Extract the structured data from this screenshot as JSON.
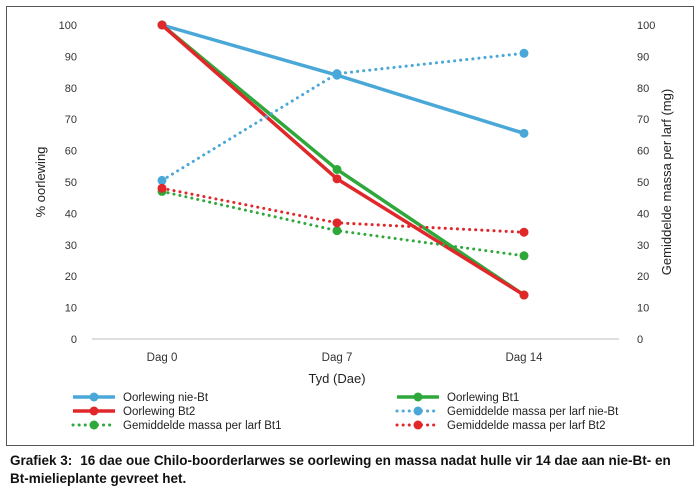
{
  "chart_data": {
    "type": "line",
    "categories": [
      "Dag 0",
      "Dag 7",
      "Dag 14"
    ],
    "xlabel": "Tyd (Dae)",
    "ylabel_left": "% oorlewing",
    "ylabel_right": "Gemiddelde massa per larf (mg)",
    "ylim_left": [
      0,
      100
    ],
    "ylim_right": [
      0,
      100
    ],
    "yticks": [
      0,
      10,
      20,
      30,
      40,
      50,
      60,
      70,
      80,
      90,
      100
    ],
    "grid": false,
    "legend_position": "bottom",
    "series": [
      {
        "name": "Oorlewing nie-Bt",
        "values": [
          100,
          84,
          65.5
        ],
        "color": "#4aa8d8",
        "style": "solid"
      },
      {
        "name": "Oorlewing Bt1",
        "values": [
          100,
          54,
          14
        ],
        "color": "#2ea83a",
        "style": "solid"
      },
      {
        "name": "Oorlewing Bt2",
        "values": [
          100,
          51,
          14
        ],
        "color": "#e0282a",
        "style": "solid"
      },
      {
        "name": "Gemiddelde massa per larf nie-Bt",
        "values": [
          50.5,
          84.5,
          91
        ],
        "color": "#4aa8d8",
        "style": "dotted"
      },
      {
        "name": "Gemiddelde massa per larf Bt1",
        "values": [
          47,
          34.5,
          26.5
        ],
        "color": "#2ea83a",
        "style": "dotted"
      },
      {
        "name": "Gemiddelde massa per larf Bt2",
        "values": [
          48,
          37,
          34
        ],
        "color": "#e0282a",
        "style": "dotted"
      }
    ]
  },
  "caption": {
    "number": "Grafiek 3:",
    "text": "16 dae oue Chilo-boorderlarwes se oorlewing en massa nadat hulle vir 14 dae aan nie-Bt- en Bt-mielieplante gevreet het."
  }
}
